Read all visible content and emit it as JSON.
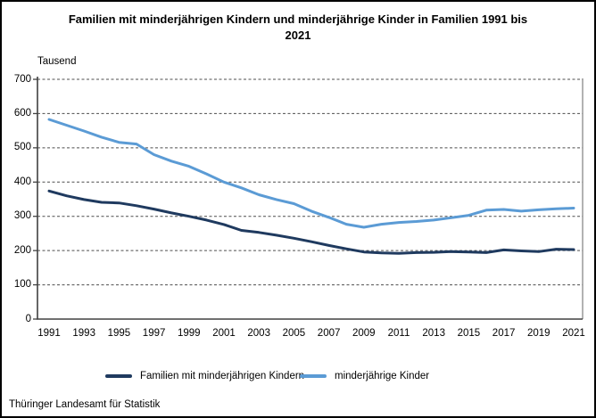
{
  "title": "Familien mit minderjährigen Kindern und minderjährige Kinder in Familien 1991 bis 2021",
  "unit_label": "Tausend",
  "footer": "Thüringer Landesamt für Statistik",
  "colors": {
    "families_line": "#1f3a5f",
    "children_line": "#5b9bd5",
    "gridline": "#4d4d4d",
    "axis": "#404040",
    "plot_border": "#7f7f7f"
  },
  "legend": {
    "items": [
      {
        "label": "Familien mit minderjährigen Kindern",
        "color": "#1f3a5f"
      },
      {
        "label": "minderjährige Kinder",
        "color": "#5b9bd5"
      }
    ]
  },
  "chart_data": {
    "type": "line",
    "title": "Familien mit minderjährigen Kindern und minderjährige Kinder in Familien 1991 bis 2021",
    "ylabel": "Tausend",
    "xlabel": "",
    "ylim": [
      0,
      700
    ],
    "y_ticks": [
      0,
      100,
      200,
      300,
      400,
      500,
      600,
      700
    ],
    "grid": "horizontal-dashed",
    "legend_position": "bottom",
    "x": [
      1991,
      1992,
      1993,
      1994,
      1995,
      1996,
      1997,
      1998,
      1999,
      2000,
      2001,
      2002,
      2003,
      2004,
      2005,
      2006,
      2007,
      2008,
      2009,
      2010,
      2011,
      2012,
      2013,
      2014,
      2015,
      2016,
      2017,
      2018,
      2019,
      2020,
      2021
    ],
    "x_tick_labels": [
      "1991",
      "1993",
      "1995",
      "1997",
      "1999",
      "2001",
      "2003",
      "2005",
      "2007",
      "2009",
      "2011",
      "2013",
      "2015",
      "2017",
      "2019",
      "2021"
    ],
    "series": [
      {
        "name": "Familien mit minderjährigen Kindern",
        "color": "#1f3a5f",
        "values": [
          374,
          360,
          349,
          341,
          339,
          331,
          321,
          310,
          300,
          289,
          276,
          259,
          253,
          245,
          236,
          226,
          215,
          205,
          196,
          193,
          192,
          194,
          195,
          197,
          196,
          194,
          202,
          199,
          197,
          204,
          203
        ]
      },
      {
        "name": "minderjährige Kinder",
        "color": "#5b9bd5",
        "values": [
          583,
          566,
          549,
          531,
          516,
          511,
          480,
          461,
          446,
          424,
          400,
          383,
          363,
          349,
          337,
          315,
          297,
          277,
          268,
          277,
          282,
          285,
          289,
          296,
          303,
          318,
          320,
          315,
          319,
          322,
          324
        ]
      }
    ]
  }
}
